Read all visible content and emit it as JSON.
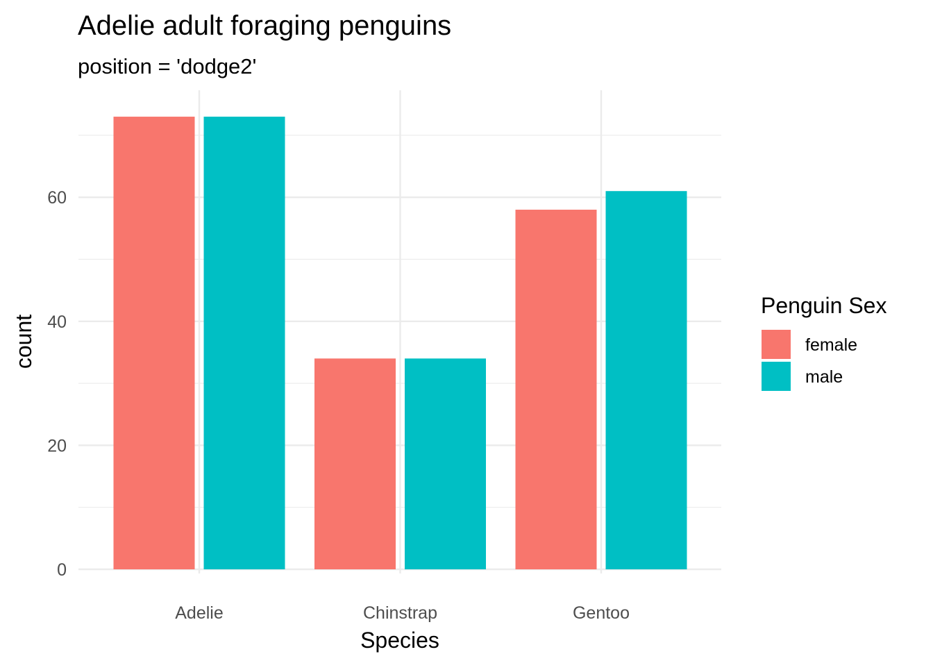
{
  "chart_data": {
    "type": "bar",
    "title": "Adelie adult foraging penguins",
    "subtitle": "position = 'dodge2'",
    "xlabel": "Species",
    "ylabel": "count",
    "categories": [
      "Adelie",
      "Chinstrap",
      "Gentoo"
    ],
    "series": [
      {
        "name": "female",
        "values": [
          73,
          34,
          58
        ],
        "color": "#F8766D"
      },
      {
        "name": "male",
        "values": [
          73,
          34,
          61
        ],
        "color": "#00BFC4"
      }
    ],
    "ylim": [
      0,
      76.7
    ],
    "yticks": [
      0,
      20,
      40,
      60
    ],
    "grid": true,
    "legend": {
      "title": "Penguin Sex",
      "placement": "right"
    }
  }
}
